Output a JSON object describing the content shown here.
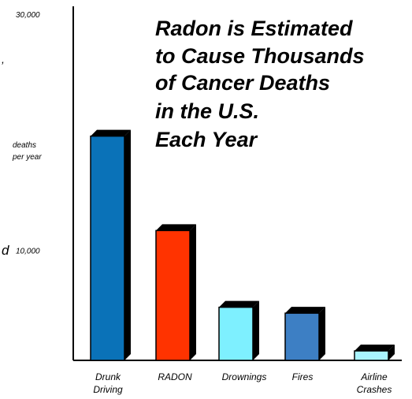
{
  "chart_data": {
    "type": "bar",
    "title_lines": [
      "Radon is Estimated",
      "to Cause Thousands",
      "of Cancer Deaths",
      "in the U.S.",
      "Each Year"
    ],
    "ylabel_lines": [
      "deaths",
      "per year"
    ],
    "y_tick_labels": [
      "30,000",
      "10,000"
    ],
    "y_tick_values": [
      30000,
      10000
    ],
    "ylim": [
      0,
      30000
    ],
    "categories": [
      [
        "Drunk",
        "Driving"
      ],
      [
        "RADON"
      ],
      [
        "Drownings"
      ],
      [
        "Fires"
      ],
      [
        "Airline",
        "Crashes"
      ]
    ],
    "values": [
      19000,
      11000,
      4500,
      4000,
      800
    ],
    "colors": [
      "#0a72b8",
      "#ff3300",
      "#7ef0ff",
      "#3d7fc4",
      "#a9f4ff"
    ],
    "grid": false,
    "legend": "none"
  },
  "stray_text": [
    ",",
    "d"
  ]
}
